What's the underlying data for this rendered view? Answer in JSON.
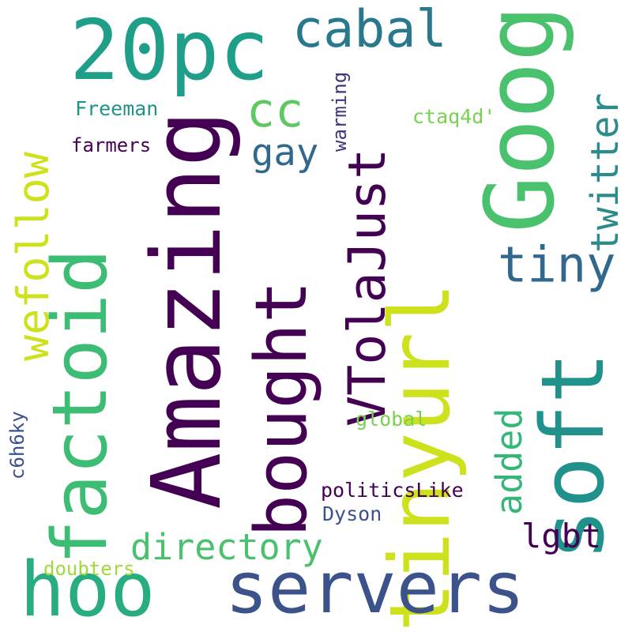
{
  "cloud": {
    "background": "#ffffff",
    "palette": {
      "dark_purple": "#440154",
      "indigo": "#3b528b",
      "teal": "#21918c",
      "green": "#1f9e89",
      "light_green": "#5ec962",
      "yellow_green": "#cde11d"
    },
    "words": [
      {
        "text": "tinyurl",
        "color": "#cde11d",
        "orientation": "vertical"
      },
      {
        "text": "Amazing",
        "color": "#440154",
        "orientation": "vertical"
      },
      {
        "text": "soft",
        "color": "#21918c",
        "orientation": "vertical"
      },
      {
        "text": "factoid",
        "color": "#3dbc74",
        "orientation": "vertical"
      },
      {
        "text": "servers",
        "color": "#3b528b",
        "orientation": "horizontal"
      },
      {
        "text": "bought",
        "color": "#440154",
        "orientation": "vertical"
      },
      {
        "text": "Goog",
        "color": "#4ac16d",
        "orientation": "vertical"
      },
      {
        "text": "20pc",
        "color": "#1f9e89",
        "orientation": "horizontal"
      },
      {
        "text": "hoo",
        "color": "#27ad81",
        "orientation": "horizontal"
      },
      {
        "text": "cabal",
        "color": "#2a788e",
        "orientation": "horizontal"
      },
      {
        "text": "twitter",
        "color": "#2c8c8c",
        "orientation": "vertical"
      },
      {
        "text": "VTolaJust",
        "color": "#440154",
        "orientation": "vertical"
      },
      {
        "text": "wefollow",
        "color": "#cde11d",
        "orientation": "vertical"
      },
      {
        "text": "tiny",
        "color": "#31688e",
        "orientation": "horizontal"
      },
      {
        "text": "cc",
        "color": "#5ec962",
        "orientation": "horizontal"
      },
      {
        "text": "added",
        "color": "#35b779",
        "orientation": "vertical"
      },
      {
        "text": "directory",
        "color": "#4ac16d",
        "orientation": "horizontal"
      },
      {
        "text": "gay",
        "color": "#31688e",
        "orientation": "horizontal"
      },
      {
        "text": "lgbt",
        "color": "#440154",
        "orientation": "horizontal"
      },
      {
        "text": "politicsLike",
        "color": "#440154",
        "orientation": "horizontal"
      },
      {
        "text": "Dyson",
        "color": "#3b528b",
        "orientation": "horizontal"
      },
      {
        "text": "global",
        "color": "#7ad151",
        "orientation": "horizontal"
      },
      {
        "text": "doubters",
        "color": "#a0da39",
        "orientation": "horizontal"
      },
      {
        "text": "Freeman",
        "color": "#21918c",
        "orientation": "horizontal"
      },
      {
        "text": "farmers",
        "color": "#440154",
        "orientation": "horizontal"
      },
      {
        "text": "ctaq4d'",
        "color": "#7ad151",
        "orientation": "horizontal"
      },
      {
        "text": "warming",
        "color": "#46327e",
        "orientation": "vertical"
      },
      {
        "text": "c6h6ky",
        "color": "#3b528b",
        "orientation": "vertical"
      }
    ]
  }
}
